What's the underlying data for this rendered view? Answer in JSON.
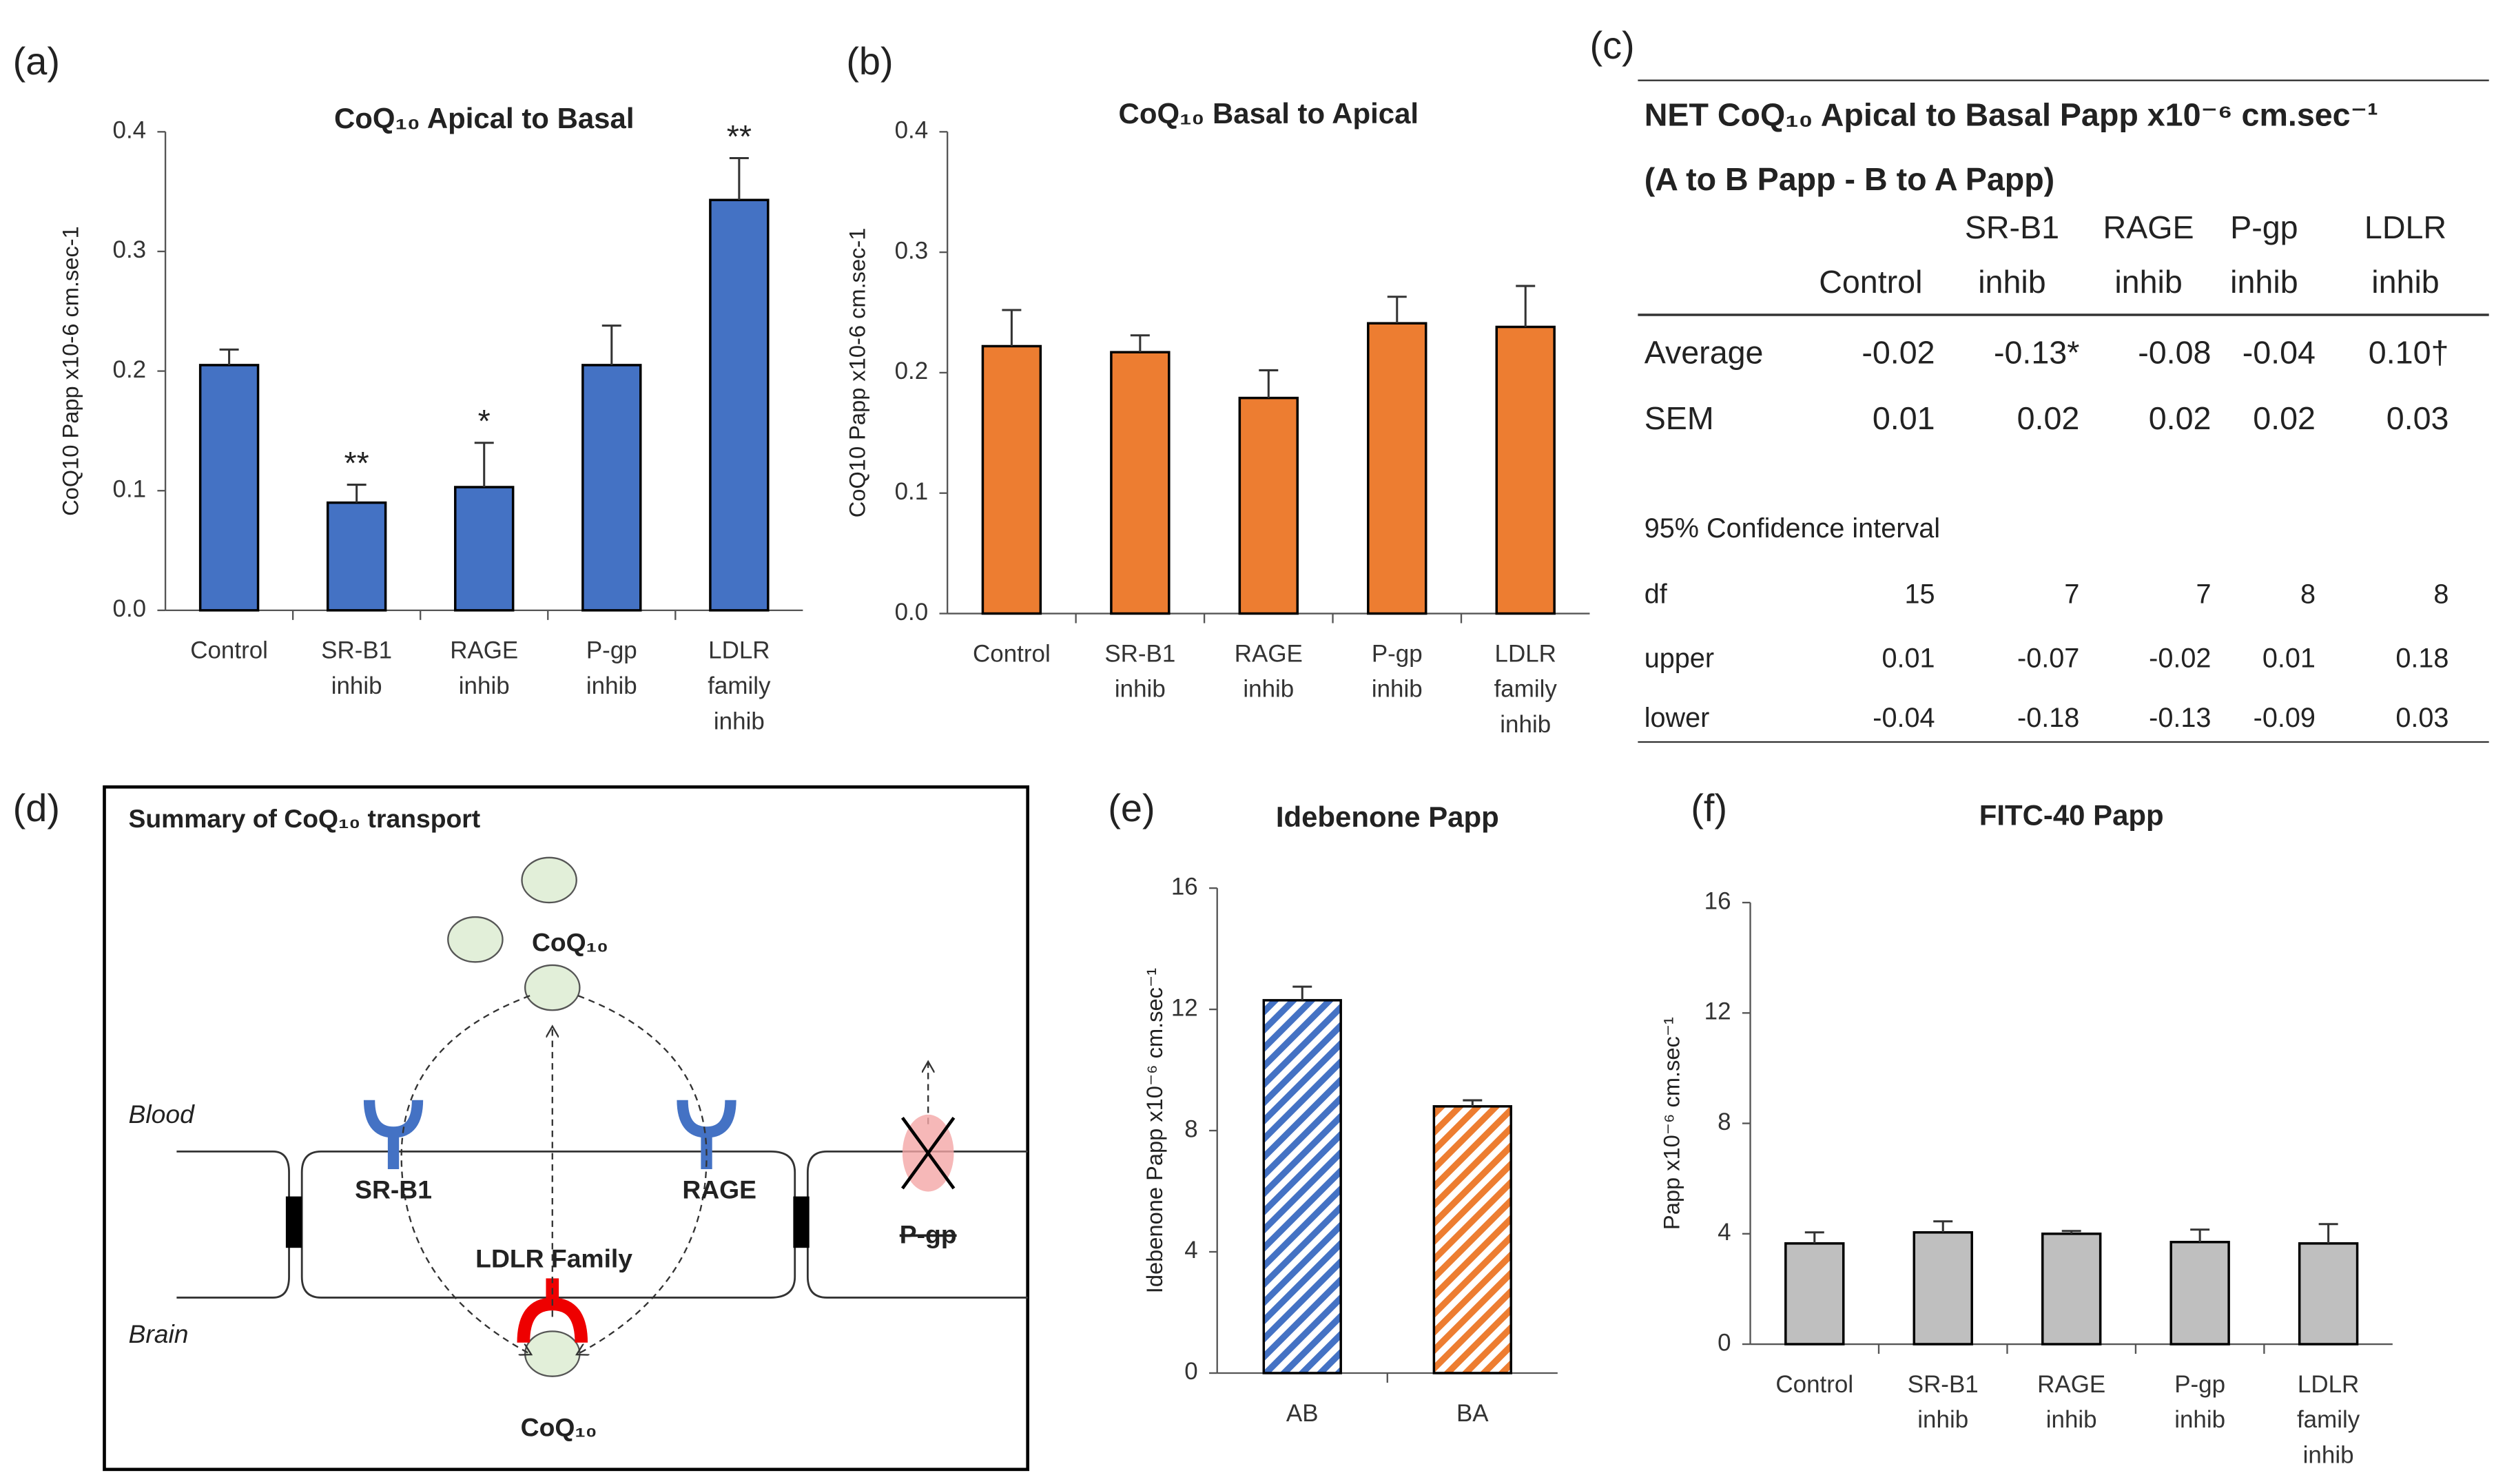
{
  "chart_data": [
    {
      "type": "bar",
      "panel_label": "(a)",
      "title": "CoQ₁₀ Apical to Basal",
      "y_label": "CoQ10 Papp x10-6 cm.sec-1",
      "categories": [
        [
          "Control"
        ],
        [
          "SR-B1",
          "inhib"
        ],
        [
          "RAGE",
          "inhib"
        ],
        [
          "P-gp",
          "inhib"
        ],
        [
          "LDLR",
          "family",
          "inhib"
        ]
      ],
      "values": [
        0.205,
        0.09,
        0.103,
        0.205,
        0.343
      ],
      "errors": [
        0.013,
        0.015,
        0.037,
        0.033,
        0.035
      ],
      "annotations": [
        null,
        "**",
        "*",
        null,
        "**"
      ],
      "color": "#4472c4",
      "ylim": [
        0,
        0.4
      ],
      "yticks": [
        {
          "value": 0,
          "label": "0.0"
        },
        0.1,
        0.2,
        0.3,
        0.4
      ]
    },
    {
      "type": "bar",
      "panel_label": "(b)",
      "title": "CoQ₁₀ Basal to Apical",
      "y_label": "CoQ10 Papp x10-6 cm.sec-1",
      "categories": [
        [
          "Control"
        ],
        [
          "SR-B1",
          "inhib"
        ],
        [
          "RAGE",
          "inhib"
        ],
        [
          "P-gp",
          "inhib"
        ],
        [
          "LDLR",
          "family",
          "inhib"
        ]
      ],
      "values": [
        0.222,
        0.217,
        0.179,
        0.241,
        0.238
      ],
      "errors": [
        0.03,
        0.014,
        0.023,
        0.022,
        0.034
      ],
      "color": "#ed7d31",
      "ylim": [
        0,
        0.4
      ],
      "yticks": [
        {
          "value": 0,
          "label": "0.0"
        },
        0.1,
        0.2,
        0.3,
        0.4
      ]
    },
    {
      "type": "bar",
      "panel_label": "(e)",
      "title": "Idebenone Papp",
      "y_label": "Idebenone Papp x10⁻⁶ cm.sec⁻¹",
      "categories": [
        [
          "AB"
        ],
        [
          "BA"
        ]
      ],
      "values": [
        12.3,
        8.8
      ],
      "errors": [
        0.45,
        0.2
      ],
      "colors": [
        "#4472c4",
        "#ed7d31"
      ],
      "hatch": true,
      "ylim": [
        0,
        16
      ],
      "yticks": [
        0,
        4,
        8,
        12,
        16
      ]
    },
    {
      "type": "bar",
      "panel_label": "(f)",
      "title": "FITC-40 Papp",
      "y_label": "Papp x10⁻⁶ cm.sec⁻¹",
      "categories": [
        [
          "Control"
        ],
        [
          "SR-B1",
          "inhib"
        ],
        [
          "RAGE",
          "inhib"
        ],
        [
          "P-gp",
          "inhib"
        ],
        [
          "LDLR",
          "family",
          "inhib"
        ]
      ],
      "values": [
        3.65,
        4.05,
        4.0,
        3.7,
        3.65
      ],
      "errors": [
        0.4,
        0.4,
        0.1,
        0.45,
        0.7
      ],
      "color": "#bfbfbf",
      "ylim": [
        0,
        16
      ],
      "yticks": [
        0,
        4,
        8,
        12,
        16
      ]
    }
  ],
  "table": {
    "panel_label": "(c)",
    "title": "NET CoQ₁₀ Apical to Basal Papp x10⁻⁶ cm.sec⁻¹",
    "subtitle": "(A to B Papp - B to A Papp)",
    "columns": [
      [
        "",
        "Control"
      ],
      [
        "SR-B1",
        "inhib"
      ],
      [
        "RAGE",
        "inhib"
      ],
      [
        "P-gp",
        "inhib"
      ],
      [
        "LDLR",
        "inhib"
      ]
    ],
    "rows": [
      [
        "Average",
        "-0.02",
        "-0.13*",
        "-0.08",
        "-0.04",
        "0.10†"
      ],
      [
        "SEM",
        "0.01",
        "0.02",
        "0.02",
        "0.02",
        "0.03"
      ]
    ],
    "section": "95% Confidence interval",
    "ci_rows": [
      [
        "df",
        "15",
        "7",
        "7",
        "8",
        "8"
      ],
      [
        "upper",
        "0.01",
        "-0.07",
        "-0.02",
        "0.01",
        "0.18"
      ],
      [
        "lower",
        "-0.04",
        "-0.18",
        "-0.13",
        "-0.09",
        "0.03"
      ]
    ]
  },
  "diagram": {
    "panel_label": "(d)",
    "title": "Summary of CoQ₁₀ transport",
    "coq_top": "CoQ₁₀",
    "blood": "Blood",
    "brain": "Brain",
    "sr_b1": "SR-B1",
    "rage": "RAGE",
    "ldlr": "LDLR Family",
    "pgp": "P-gp",
    "coq_bottom": "CoQ₁₀"
  }
}
